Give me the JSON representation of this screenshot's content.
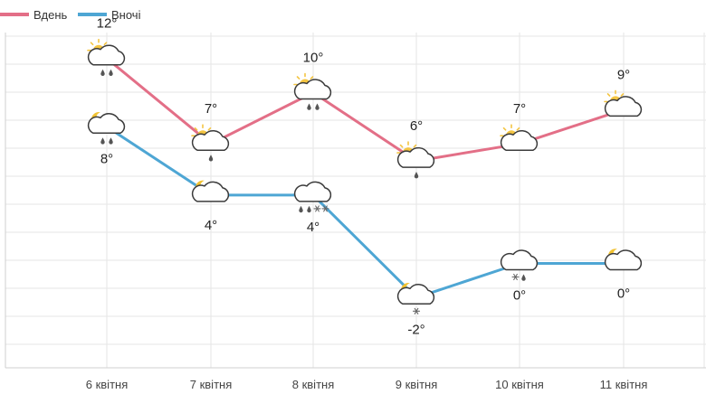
{
  "chart_data": {
    "type": "line",
    "categories": [
      "6 квітня",
      "7 квітня",
      "8 квітня",
      "9 квітня",
      "10 квітня",
      "11 квітня"
    ],
    "series": [
      {
        "name": "Вдень",
        "color": "#e36f87",
        "values": [
          12,
          7,
          10,
          6,
          7,
          9
        ],
        "labels": [
          "12°",
          "7°",
          "10°",
          "6°",
          "7°",
          "9°"
        ],
        "icons": [
          "sun-cloud-rain-icon",
          "sun-cloud-icon",
          "sun-cloud-rain-icon",
          "sun-cloud-rain-icon",
          "sun-cloud-icon",
          "sun-cloud-icon"
        ],
        "precip": [
          "rain-rain",
          "rain",
          "rain-rain",
          "rain",
          "",
          ""
        ]
      },
      {
        "name": "Вночі",
        "color": "#4ea6d4",
        "values": [
          8,
          4,
          4,
          -2,
          0,
          0
        ],
        "labels": [
          "8°",
          "4°",
          "4°",
          "-2°",
          "0°",
          "0°"
        ],
        "icons": [
          "moon-cloud-rain-icon",
          "moon-cloud-icon",
          "cloud-rain-snow-icon",
          "moon-cloud-snow-icon",
          "cloud-snow-rain-icon",
          "moon-cloud-icon"
        ],
        "precip": [
          "rain-rain",
          "",
          "rain-rain-snow-snow",
          "snow",
          "snow-rain",
          ""
        ]
      }
    ],
    "ylim": [
      -5,
      15
    ],
    "grid": true,
    "legend": "top-left"
  }
}
